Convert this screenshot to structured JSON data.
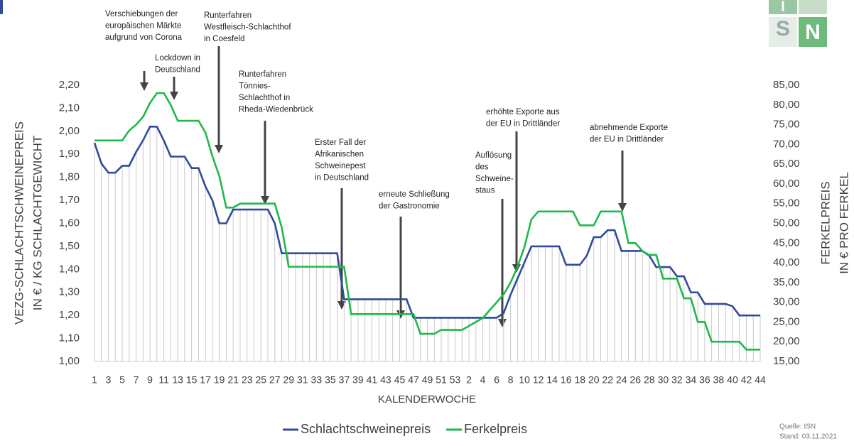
{
  "chart_data": {
    "type": "line",
    "categories": [
      "1",
      null,
      "3",
      null,
      "5",
      null,
      "7",
      null,
      "9",
      null,
      "11",
      null,
      "13",
      null,
      "15",
      null,
      "17",
      null,
      "19",
      null,
      "21",
      null,
      "23",
      null,
      "25",
      null,
      "27",
      null,
      "29",
      null,
      "31",
      null,
      "33",
      null,
      "35",
      null,
      "37",
      null,
      "39",
      null,
      "41",
      null,
      "43",
      null,
      "45",
      null,
      "47",
      null,
      "49",
      null,
      "51",
      null,
      "53",
      null,
      "2",
      null,
      "4",
      null,
      "6",
      null,
      "8",
      null,
      "10",
      null,
      "12",
      null,
      "14",
      null,
      "16",
      null,
      "18",
      null,
      "20",
      null,
      "22",
      null,
      "24",
      null,
      "26",
      null,
      "28",
      null,
      "30",
      null,
      "32",
      null,
      "34",
      null,
      "36",
      null,
      "38",
      null,
      "40",
      null,
      "42",
      null,
      "44"
    ],
    "series": [
      {
        "name": "Schlachtschweinepreis",
        "color": "#2f4b9a",
        "values": [
          1.95,
          1.86,
          1.82,
          1.82,
          1.85,
          1.85,
          1.91,
          1.96,
          2.02,
          2.02,
          1.96,
          1.89,
          1.89,
          1.89,
          1.84,
          1.84,
          1.76,
          1.7,
          1.6,
          1.6,
          1.66,
          1.66,
          1.66,
          1.66,
          1.66,
          1.66,
          1.6,
          1.47,
          1.47,
          1.47,
          1.47,
          1.47,
          1.47,
          1.47,
          1.47,
          1.47,
          1.27,
          1.27,
          1.27,
          1.27,
          1.27,
          1.27,
          1.27,
          1.27,
          1.27,
          1.27,
          1.19,
          1.19,
          1.19,
          1.19,
          1.19,
          1.19,
          1.19,
          1.19,
          1.19,
          1.19,
          1.19,
          1.19,
          1.19,
          1.21,
          1.29,
          1.36,
          1.43,
          1.5,
          1.5,
          1.5,
          1.5,
          1.5,
          1.42,
          1.42,
          1.42,
          1.46,
          1.54,
          1.54,
          1.57,
          1.57,
          1.48,
          1.48,
          1.48,
          1.48,
          1.46,
          1.41,
          1.41,
          1.41,
          1.37,
          1.37,
          1.3,
          1.3,
          1.25,
          1.25,
          1.25,
          1.25,
          1.24,
          1.2,
          1.2,
          1.2,
          1.2
        ]
      },
      {
        "name": "Ferkelpreis",
        "color": "#1fb84a",
        "axis": "y2",
        "values": [
          71,
          71,
          71,
          71,
          71,
          73.5,
          75,
          77,
          80.5,
          83,
          83,
          80,
          76,
          76,
          76,
          76,
          73,
          67,
          62,
          54,
          54,
          55,
          55,
          55,
          55,
          55,
          55,
          49,
          39,
          39,
          39,
          39,
          39,
          39,
          39,
          39,
          39,
          27,
          27,
          27,
          27,
          27,
          27,
          27,
          27,
          27,
          27,
          22,
          22,
          22,
          23,
          23,
          23,
          23,
          24,
          25,
          26,
          28,
          30,
          32,
          35,
          39,
          44,
          51,
          53,
          53,
          53,
          53,
          53,
          53,
          49.5,
          49.5,
          49.5,
          53,
          53,
          53,
          53,
          45,
          45,
          43,
          42,
          42,
          36,
          36,
          36,
          31,
          31,
          25,
          25,
          20,
          20,
          20,
          20,
          20,
          18,
          18,
          18
        ]
      }
    ],
    "ylim": [
      1.0,
      2.2
    ],
    "yticks": [
      {
        "value": 1.0,
        "label": "1,00"
      },
      {
        "value": 1.1,
        "label": "1,10"
      },
      {
        "value": 1.2,
        "label": "1,20"
      },
      {
        "value": 1.3,
        "label": "1,30"
      },
      {
        "value": 1.4,
        "label": "1,40"
      },
      {
        "value": 1.5,
        "label": "1,50"
      },
      {
        "value": 1.6,
        "label": "1,60"
      },
      {
        "value": 1.7,
        "label": "1,70"
      },
      {
        "value": 1.8,
        "label": "1,80"
      },
      {
        "value": 1.9,
        "label": "1,90"
      },
      {
        "value": 2.0,
        "label": "2,00"
      },
      {
        "value": 2.1,
        "label": "2,10"
      },
      {
        "value": 2.2,
        "label": "2,20"
      }
    ],
    "y2lim": [
      15,
      85
    ],
    "y2ticks": [
      {
        "value": 15,
        "label": "15,00"
      },
      {
        "value": 20,
        "label": "20,00"
      },
      {
        "value": 25,
        "label": "25,00"
      },
      {
        "value": 30,
        "label": "30,00"
      },
      {
        "value": 35,
        "label": "35,00"
      },
      {
        "value": 40,
        "label": "40,00"
      },
      {
        "value": 45,
        "label": "45,00"
      },
      {
        "value": 50,
        "label": "50,00"
      },
      {
        "value": 55,
        "label": "55,00"
      },
      {
        "value": 60,
        "label": "60,00"
      },
      {
        "value": 65,
        "label": "65,00"
      },
      {
        "value": 70,
        "label": "70,00"
      },
      {
        "value": 75,
        "label": "75,00"
      },
      {
        "value": 80,
        "label": "80,00"
      },
      {
        "value": 85,
        "label": "85,00"
      }
    ],
    "y_label": [
      "VEZG-SCHLACHTSCHWEINEPREIS",
      "IN € / KG SCHLACHTGEWICHT"
    ],
    "y2_label": [
      "FERKELPREIS",
      "IN € PRO FERKEL"
    ],
    "x_label": "KALENDERWOCHE",
    "annotations": [
      [
        "Verschiebungen der",
        "europäischen Märkte",
        "aufgrund von Corona"
      ],
      [
        "Lockdown in",
        "Deutschland"
      ],
      [
        "Runterfahren",
        "Westfleisch-Schlachthof",
        "in Coesfeld"
      ],
      [
        "Runterfahren",
        "Tönnies-",
        "Schlachthof in",
        "Rheda-Wiedenbrück"
      ],
      [
        "Erster Fall der",
        "Afrikanischen",
        "Schweinepest",
        "in Deutschland"
      ],
      [
        "erneute Schließung",
        "der Gastronomie"
      ],
      [
        "Auflösung",
        "des",
        "Schweine-",
        "staus"
      ],
      [
        "erhöhte Exporte aus",
        "der EU in Drittländer"
      ],
      [
        "abnehmende Exporte",
        "der EU in Drittländer"
      ]
    ],
    "source": [
      "Quelle: ISN",
      "Stand: 03.11.2021"
    ],
    "logo": [
      "I",
      "S",
      "N"
    ]
  }
}
